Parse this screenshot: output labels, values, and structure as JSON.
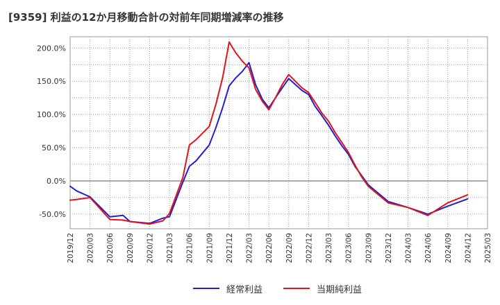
{
  "title": "[9359]  利益の12か月移動合計の対前年同期増減率の推移",
  "chart_data": {
    "type": "line",
    "title": "[9359]  利益の12か月移動合計の対前年同期増減率の推移",
    "xlabel": "",
    "ylabel": "",
    "ylim": [
      -72,
      217
    ],
    "yticks": [
      200,
      150,
      100,
      50,
      0,
      -50
    ],
    "ytick_labels": [
      "200.0%",
      "150.0%",
      "100.0%",
      "50.0%",
      "0.0%",
      "-50.0%"
    ],
    "xticks": [
      "2019/12",
      "2020/03",
      "2020/06",
      "2020/09",
      "2020/12",
      "2021/03",
      "2021/06",
      "2021/09",
      "2021/12",
      "2022/03",
      "2022/06",
      "2022/09",
      "2022/12",
      "2023/03",
      "2023/06",
      "2023/09",
      "2023/12",
      "2024/03",
      "2024/06",
      "2024/09",
      "2024/12",
      "2025/03"
    ],
    "grid": true,
    "legend_position": "bottom",
    "series": [
      {
        "name": "経常利益",
        "color": "#1f1fcf",
        "x": [
          0,
          1,
          2,
          3,
          4,
          5,
          6,
          7,
          8,
          9,
          10,
          11,
          12,
          13,
          14,
          15,
          16,
          17,
          18,
          19,
          20
        ],
        "values": [
          -8,
          -24,
          -54,
          -61,
          -64,
          -54,
          22,
          54,
          143,
          178,
          110,
          154,
          130,
          84,
          40,
          -6,
          -31,
          -40,
          -50,
          -38,
          -27
        ],
        "extra_points": [
          [
            0.33,
            -15
          ],
          [
            2.67,
            -52
          ],
          [
            4.67,
            -56
          ],
          [
            5.67,
            -2
          ],
          [
            6.33,
            30
          ],
          [
            7.33,
            80
          ],
          [
            7.67,
            110
          ],
          [
            8.33,
            155
          ],
          [
            8.67,
            165
          ],
          [
            9.33,
            145
          ],
          [
            9.67,
            123
          ],
          [
            10.33,
            125
          ],
          [
            10.67,
            140
          ],
          [
            11.33,
            145
          ],
          [
            11.67,
            136
          ],
          [
            12.33,
            112
          ],
          [
            12.67,
            98
          ],
          [
            13.33,
            68
          ],
          [
            13.67,
            53
          ],
          [
            14.33,
            22
          ],
          [
            14.67,
            8
          ]
        ],
        "smooth_points": true
      },
      {
        "name": "当期純利益",
        "color": "#e0131b",
        "x": [
          0,
          1,
          2,
          3,
          4,
          5,
          6,
          7,
          8,
          9,
          10,
          11,
          12,
          13,
          14,
          15,
          16,
          17,
          18,
          19,
          20
        ],
        "values": [
          -29,
          -25,
          -58,
          -61,
          -65,
          -49,
          54,
          82,
          209,
          170,
          107,
          160,
          133,
          90,
          43,
          -8,
          -33,
          -40,
          -52,
          -33,
          -21
        ],
        "extra_points": [
          [
            0.33,
            -28
          ],
          [
            2.67,
            -59
          ],
          [
            4.67,
            -60
          ],
          [
            5.67,
            5
          ],
          [
            6.33,
            62
          ],
          [
            7.33,
            115
          ],
          [
            7.67,
            155
          ],
          [
            8.33,
            193
          ],
          [
            8.67,
            180
          ],
          [
            9.33,
            138
          ],
          [
            9.67,
            120
          ],
          [
            10.33,
            125
          ],
          [
            10.67,
            145
          ],
          [
            11.33,
            150
          ],
          [
            11.67,
            140
          ],
          [
            12.33,
            118
          ],
          [
            12.67,
            102
          ],
          [
            13.33,
            73
          ],
          [
            13.67,
            58
          ],
          [
            14.33,
            24
          ],
          [
            14.67,
            6
          ]
        ],
        "smooth_points": true
      }
    ]
  }
}
